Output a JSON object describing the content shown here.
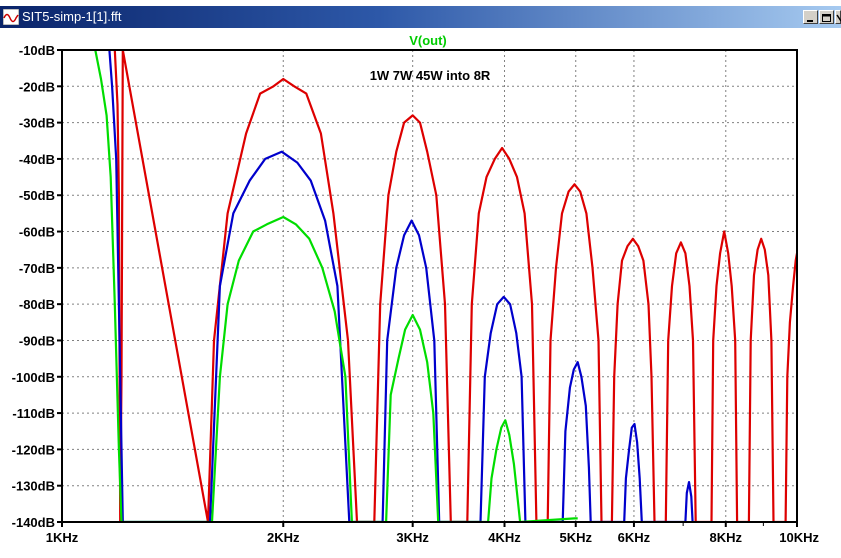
{
  "window": {
    "title": "SIT5-simp-1[1].fft",
    "icon": "waveform-icon",
    "buttons": [
      "minimize-icon",
      "maximize-icon",
      "close-icon"
    ]
  },
  "chart_data": {
    "type": "line",
    "title": "V(out)",
    "title_color": "#00cc00",
    "annotation": "1W 7W 45W into 8R",
    "xlabel": "",
    "ylabel": "",
    "x_scale": "log",
    "x_unit": "Hz",
    "xlim": [
      1000,
      10000
    ],
    "ylim": [
      -140,
      -10
    ],
    "grid": true,
    "x_ticks": [
      {
        "value": 1000,
        "label": "1KHz"
      },
      {
        "value": 2000,
        "label": "2KHz"
      },
      {
        "value": 3000,
        "label": "3KHz"
      },
      {
        "value": 4000,
        "label": "4KHz"
      },
      {
        "value": 5000,
        "label": "5KHz"
      },
      {
        "value": 6000,
        "label": "6KHz"
      },
      {
        "value": 8000,
        "label": "8KHz"
      },
      {
        "value": 10000,
        "label": "10KHz"
      }
    ],
    "y_ticks": [
      {
        "value": -10,
        "label": "-10dB"
      },
      {
        "value": -20,
        "label": "-20dB"
      },
      {
        "value": -30,
        "label": "-30dB"
      },
      {
        "value": -40,
        "label": "-40dB"
      },
      {
        "value": -50,
        "label": "-50dB"
      },
      {
        "value": -60,
        "label": "-60dB"
      },
      {
        "value": -70,
        "label": "-70dB"
      },
      {
        "value": -80,
        "label": "-80dB"
      },
      {
        "value": -90,
        "label": "-90dB"
      },
      {
        "value": -100,
        "label": "-100dB"
      },
      {
        "value": -110,
        "label": "-110dB"
      },
      {
        "value": -120,
        "label": "-120dB"
      },
      {
        "value": -130,
        "label": "-130dB"
      },
      {
        "value": -140,
        "label": "-140dB"
      }
    ],
    "series": [
      {
        "color": "#dd0000",
        "points": [
          [
            1180,
            -10
          ],
          [
            1190,
            -25
          ],
          [
            1195,
            -50
          ],
          [
            1200,
            -140
          ],
          [
            1200,
            -140
          ],
          [
            1205,
            -100
          ],
          [
            1210,
            -10
          ],
          [
            1580,
            -140
          ],
          [
            1610,
            -90
          ],
          [
            1680,
            -55
          ],
          [
            1780,
            -33
          ],
          [
            1860,
            -22
          ],
          [
            1940,
            -20
          ],
          [
            2000,
            -18
          ],
          [
            2070,
            -20
          ],
          [
            2150,
            -22
          ],
          [
            2250,
            -33
          ],
          [
            2340,
            -55
          ],
          [
            2450,
            -90
          ],
          [
            2520,
            -140
          ],
          [
            2660,
            -140
          ],
          [
            2710,
            -80
          ],
          [
            2780,
            -50
          ],
          [
            2850,
            -38
          ],
          [
            2920,
            -30
          ],
          [
            3000,
            -28
          ],
          [
            3070,
            -30
          ],
          [
            3140,
            -38
          ],
          [
            3230,
            -50
          ],
          [
            3320,
            -80
          ],
          [
            3380,
            -140
          ],
          [
            3560,
            -140
          ],
          [
            3610,
            -80
          ],
          [
            3690,
            -55
          ],
          [
            3780,
            -45
          ],
          [
            3880,
            -40
          ],
          [
            3970,
            -37
          ],
          [
            4060,
            -40
          ],
          [
            4160,
            -45
          ],
          [
            4260,
            -55
          ],
          [
            4360,
            -80
          ],
          [
            4420,
            -140
          ],
          [
            4580,
            -140
          ],
          [
            4620,
            -90
          ],
          [
            4700,
            -70
          ],
          [
            4790,
            -55
          ],
          [
            4890,
            -49
          ],
          [
            4980,
            -47
          ],
          [
            5070,
            -49
          ],
          [
            5170,
            -55
          ],
          [
            5270,
            -70
          ],
          [
            5370,
            -90
          ],
          [
            5420,
            -140
          ],
          [
            5600,
            -140
          ],
          [
            5640,
            -100
          ],
          [
            5700,
            -80
          ],
          [
            5780,
            -68
          ],
          [
            5880,
            -64
          ],
          [
            5980,
            -62
          ],
          [
            6080,
            -64
          ],
          [
            6180,
            -68
          ],
          [
            6280,
            -80
          ],
          [
            6340,
            -100
          ],
          [
            6400,
            -140
          ],
          [
            6630,
            -140
          ],
          [
            6680,
            -90
          ],
          [
            6760,
            -75
          ],
          [
            6850,
            -66
          ],
          [
            6950,
            -63
          ],
          [
            7050,
            -66
          ],
          [
            7140,
            -75
          ],
          [
            7220,
            -90
          ],
          [
            7280,
            -140
          ],
          [
            7650,
            -140
          ],
          [
            7690,
            -90
          ],
          [
            7770,
            -75
          ],
          [
            7860,
            -66
          ],
          [
            7960,
            -60
          ],
          [
            8060,
            -66
          ],
          [
            8150,
            -75
          ],
          [
            8240,
            -90
          ],
          [
            8290,
            -140
          ],
          [
            8600,
            -140
          ],
          [
            8650,
            -90
          ],
          [
            8740,
            -72
          ],
          [
            8840,
            -65
          ],
          [
            8940,
            -62
          ],
          [
            9040,
            -65
          ],
          [
            9140,
            -72
          ],
          [
            9230,
            -90
          ],
          [
            9290,
            -140
          ],
          [
            9650,
            -140
          ],
          [
            9700,
            -100
          ],
          [
            9780,
            -85
          ],
          [
            9880,
            -75
          ],
          [
            9960,
            -68
          ],
          [
            10000,
            -66
          ]
        ]
      },
      {
        "color": "#0000cc",
        "points": [
          [
            1160,
            -10
          ],
          [
            1170,
            -20
          ],
          [
            1185,
            -40
          ],
          [
            1195,
            -80
          ],
          [
            1210,
            -140
          ],
          [
            1590,
            -140
          ],
          [
            1640,
            -75
          ],
          [
            1710,
            -55
          ],
          [
            1800,
            -46
          ],
          [
            1890,
            -40
          ],
          [
            1990,
            -38
          ],
          [
            2090,
            -41
          ],
          [
            2180,
            -46
          ],
          [
            2280,
            -57
          ],
          [
            2370,
            -75
          ],
          [
            2460,
            -140
          ],
          [
            2730,
            -140
          ],
          [
            2770,
            -90
          ],
          [
            2850,
            -70
          ],
          [
            2920,
            -61
          ],
          [
            2990,
            -57
          ],
          [
            3060,
            -61
          ],
          [
            3130,
            -70
          ],
          [
            3210,
            -90
          ],
          [
            3260,
            -140
          ],
          [
            3710,
            -140
          ],
          [
            3760,
            -100
          ],
          [
            3830,
            -88
          ],
          [
            3910,
            -80
          ],
          [
            3990,
            -78
          ],
          [
            4070,
            -80
          ],
          [
            4150,
            -88
          ],
          [
            4220,
            -100
          ],
          [
            4270,
            -140
          ],
          [
            4800,
            -140
          ],
          [
            4840,
            -115
          ],
          [
            4910,
            -103
          ],
          [
            4970,
            -98
          ],
          [
            5030,
            -96
          ],
          [
            5090,
            -100
          ],
          [
            5160,
            -108
          ],
          [
            5210,
            -125
          ],
          [
            5240,
            -140
          ],
          [
            5820,
            -140
          ],
          [
            5850,
            -128
          ],
          [
            5910,
            -120
          ],
          [
            5960,
            -114
          ],
          [
            6010,
            -113
          ],
          [
            6060,
            -118
          ],
          [
            6110,
            -128
          ],
          [
            6150,
            -140
          ],
          [
            7050,
            -140
          ],
          [
            7080,
            -132
          ],
          [
            7130,
            -129
          ],
          [
            7180,
            -133
          ],
          [
            7210,
            -140
          ]
        ]
      },
      {
        "color": "#00dd00",
        "points": [
          [
            1110,
            -10
          ],
          [
            1130,
            -18
          ],
          [
            1150,
            -28
          ],
          [
            1165,
            -45
          ],
          [
            1180,
            -80
          ],
          [
            1195,
            -120
          ],
          [
            1205,
            -140
          ],
          [
            1600,
            -140
          ],
          [
            1640,
            -100
          ],
          [
            1680,
            -80
          ],
          [
            1740,
            -68
          ],
          [
            1820,
            -60
          ],
          [
            1900,
            -58
          ],
          [
            2000,
            -56
          ],
          [
            2080,
            -58
          ],
          [
            2170,
            -62
          ],
          [
            2260,
            -70
          ],
          [
            2350,
            -82
          ],
          [
            2430,
            -100
          ],
          [
            2480,
            -140
          ],
          [
            2760,
            -140
          ],
          [
            2800,
            -105
          ],
          [
            2870,
            -95
          ],
          [
            2930,
            -87
          ],
          [
            3000,
            -83
          ],
          [
            3070,
            -87
          ],
          [
            3140,
            -96
          ],
          [
            3200,
            -110
          ],
          [
            3250,
            -140
          ],
          [
            3800,
            -140
          ],
          [
            3840,
            -128
          ],
          [
            3900,
            -120
          ],
          [
            3960,
            -114
          ],
          [
            4010,
            -112
          ],
          [
            4060,
            -116
          ],
          [
            4120,
            -124
          ],
          [
            4170,
            -134
          ],
          [
            4200,
            -140
          ],
          [
            4980,
            -139
          ],
          [
            5000,
            -139
          ],
          [
            5030,
            -139
          ]
        ]
      }
    ]
  }
}
